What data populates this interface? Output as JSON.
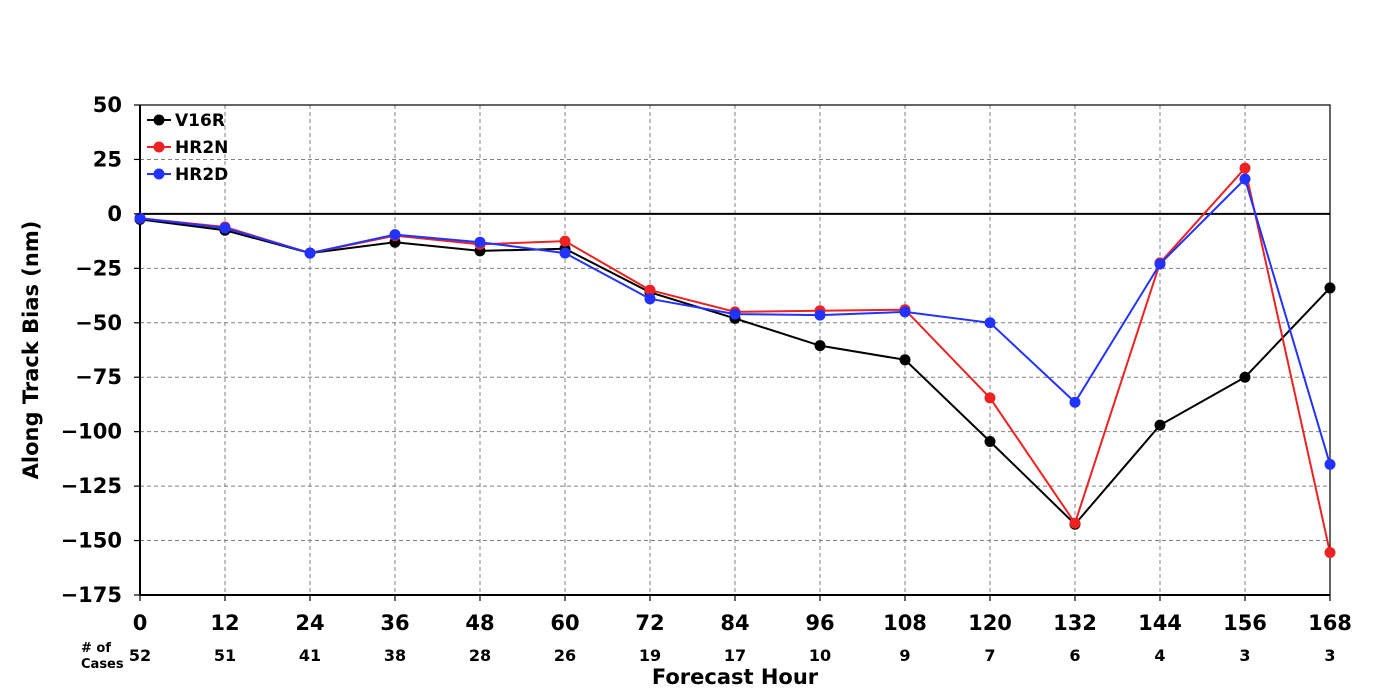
{
  "chart_data": {
    "type": "line",
    "xlabel": "Forecast Hour",
    "ylabel": "Along Track Bias (nm)",
    "x": [
      0,
      12,
      24,
      36,
      48,
      60,
      72,
      84,
      96,
      108,
      120,
      132,
      144,
      156,
      168
    ],
    "xlim": [
      0,
      168
    ],
    "ylim": [
      -175,
      50
    ],
    "yticks": [
      50,
      25,
      0,
      -25,
      -50,
      -75,
      -100,
      -125,
      -150,
      -175
    ],
    "grid": true,
    "zero_line": true,
    "legend_position": "top-left",
    "cases_label": [
      "# of",
      "Cases"
    ],
    "cases": [
      52,
      51,
      41,
      38,
      28,
      26,
      19,
      17,
      10,
      9,
      7,
      6,
      4,
      3,
      3
    ],
    "series": [
      {
        "name": "V16R",
        "color": "#000000",
        "values": [
          -2.5,
          -7.5,
          -18,
          -13,
          -17,
          -16,
          -36,
          -48,
          -60.5,
          -67,
          -104.5,
          -142.5,
          -97,
          -75,
          -34
        ]
      },
      {
        "name": "HR2N",
        "color": "#ee2222",
        "values": [
          -2,
          -6,
          -18,
          -10,
          -14,
          -12.5,
          -35,
          -45,
          -44.5,
          -44,
          -84.5,
          -142,
          -22.5,
          21,
          -155.5
        ]
      },
      {
        "name": "HR2D",
        "color": "#2233ff",
        "values": [
          -2,
          -6.5,
          -18,
          -9.5,
          -13,
          -18,
          -39,
          -46,
          -46.5,
          -45,
          -50,
          -86.5,
          -23,
          16,
          -115
        ]
      }
    ]
  }
}
